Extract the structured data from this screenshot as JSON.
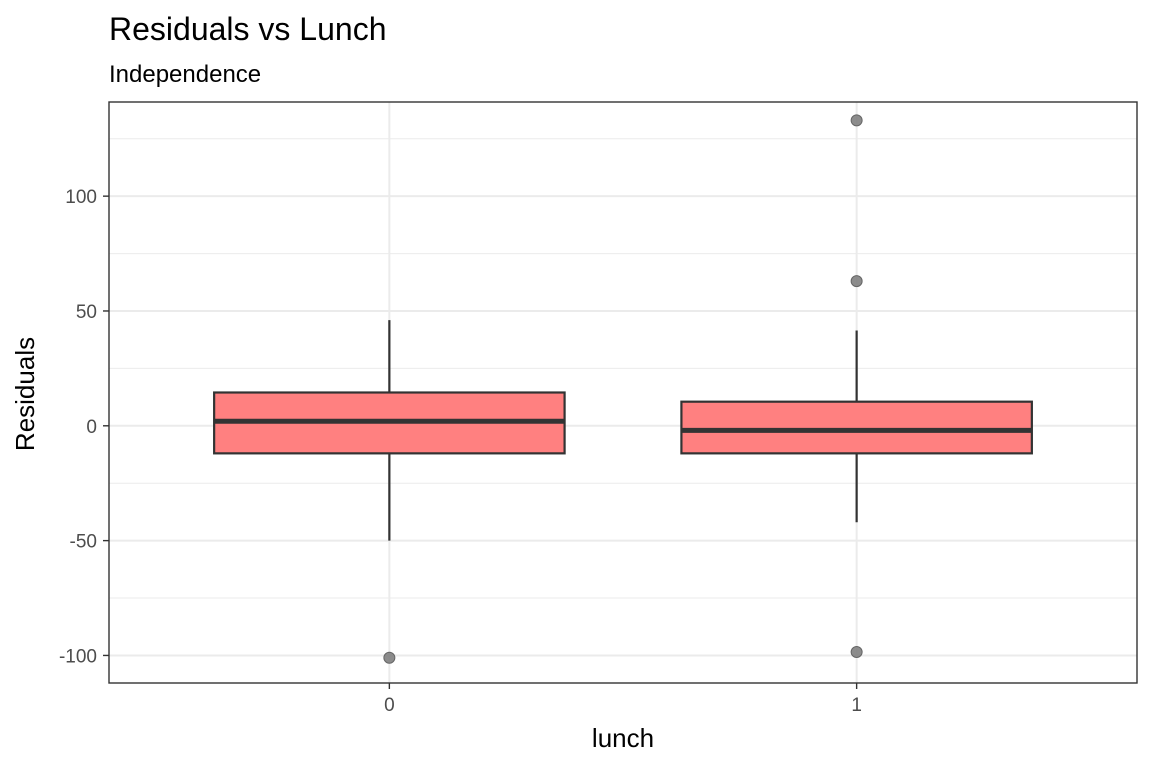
{
  "chart_data": {
    "type": "boxplot",
    "title": "Residuals vs Lunch",
    "subtitle": "Independence",
    "xlabel": "lunch",
    "ylabel": "Residuals",
    "categories": [
      "0",
      "1"
    ],
    "ylim": [
      -112,
      141
    ],
    "yticks": [
      -100,
      -50,
      0,
      50,
      100
    ],
    "y_minor_gridlines": [
      -75,
      -25,
      25,
      75,
      125
    ],
    "grid": true,
    "box_fill": "#ff8080",
    "box_stroke": "#333333",
    "outlier_color": "#808080",
    "boxes": [
      {
        "category": "0",
        "q1": -12,
        "median": 2,
        "q3": 14.5,
        "whisker_low": -50,
        "whisker_high": 46,
        "outliers": [
          -101
        ]
      },
      {
        "category": "1",
        "q1": -12,
        "median": -2,
        "q3": 10.5,
        "whisker_low": -42,
        "whisker_high": 41.5,
        "outliers": [
          133,
          63,
          -98.5
        ]
      }
    ]
  }
}
